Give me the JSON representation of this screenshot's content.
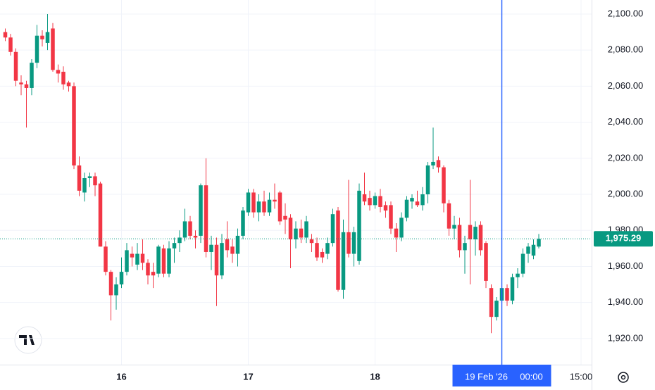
{
  "chart_data": {
    "type": "candlestick",
    "x": [
      -22,
      -21,
      -20,
      -19,
      -18,
      -17,
      -16,
      -15,
      -14,
      -13,
      -12,
      -11,
      -10,
      -9,
      -8,
      -7,
      -6,
      -5,
      -4,
      -3,
      -2,
      -1,
      0,
      1,
      2,
      3,
      4,
      5,
      6,
      7,
      8,
      9,
      10,
      11,
      12,
      13,
      14,
      15,
      16,
      17,
      18,
      19,
      20,
      21,
      22,
      23,
      24,
      25,
      26,
      27,
      28,
      29,
      30,
      31,
      32,
      33,
      34,
      35,
      36,
      37,
      38,
      39,
      40,
      41,
      42,
      43,
      44,
      45,
      46,
      47,
      48,
      49,
      50,
      51,
      52,
      53,
      54,
      55,
      56,
      57,
      58,
      59,
      60,
      61,
      62,
      63,
      64,
      65,
      66,
      67,
      68,
      69,
      70,
      71,
      72,
      73,
      74,
      75,
      76,
      77,
      78,
      79
    ],
    "open": [
      2090,
      2087,
      2079,
      2062,
      2061,
      2059,
      2073,
      2088,
      2084,
      2092,
      2069,
      2068,
      2062,
      2060,
      2016,
      2001,
      2009,
      2010,
      2006,
      1971,
      1957,
      1944,
      1950,
      1957,
      1967,
      1961,
      1967,
      1962,
      1957,
      1956,
      1970,
      1956,
      1970,
      1973,
      1976,
      1985,
      1977,
      1977,
      2005,
      1968,
      1972,
      1955,
      1975,
      1971,
      1967,
      1977,
      1990,
      2001,
      1990,
      1996,
      1990,
      1997,
      2001,
      1988,
      1987,
      1975,
      1981,
      1976,
      1975,
      1973,
      1968,
      1967,
      1973,
      1991,
      1947,
      1979,
      1967,
      1963,
      2000,
      1998,
      1994,
      1999,
      1994,
      1994,
      1981,
      1976,
      1987,
      1996,
      1996,
      1994,
      2000,
      2016,
      2019,
      2015,
      1995,
      1981,
      1983,
      1969,
      1983,
      1975,
      1983,
      1973,
      1948,
      1932,
      1941,
      1948,
      1941,
      1954,
      1956,
      1967,
      1966,
      1971
    ],
    "high": [
      2092,
      2089,
      2081,
      2066,
      2063,
      2075,
      2094,
      2091,
      2100,
      2095,
      2072,
      2071,
      2063,
      2062,
      2021,
      2012,
      2012,
      2012,
      2007,
      1974,
      1958,
      1954,
      1965,
      1973,
      1971,
      1973,
      1975,
      1964,
      1962,
      1972,
      1972,
      1974,
      1976,
      1980,
      1992,
      1988,
      1980,
      2006,
      2020,
      1977,
      1976,
      1978,
      1985,
      1975,
      1981,
      1993,
      2003,
      2003,
      2000,
      2002,
      2001,
      2006,
      2002,
      1995,
      1989,
      1985,
      1986,
      1988,
      1978,
      1976,
      1970,
      1976,
      1992,
      1993,
      1986,
      2008,
      1982,
      2006,
      2012,
      2002,
      2001,
      2003,
      1996,
      1996,
      1984,
      1990,
      1999,
      2000,
      2002,
      2004,
      2018,
      2037,
      2021,
      2016,
      1997,
      1988,
      1987,
      1977,
      2008,
      1985,
      1985,
      1974,
      1950,
      1943,
      1956,
      1950,
      1956,
      1959,
      1970,
      1973,
      1975,
      1978
    ],
    "low": [
      2085,
      2077,
      2060,
      2055,
      2037,
      2055,
      2070,
      2082,
      2080,
      2068,
      2062,
      2058,
      2057,
      2014,
      1999,
      1996,
      2004,
      1999,
      1971,
      1955,
      1930,
      1936,
      1948,
      1955,
      1960,
      1958,
      1958,
      1950,
      1948,
      1954,
      1954,
      1954,
      1962,
      1968,
      1974,
      1975,
      1970,
      1973,
      1965,
      1958,
      1938,
      1953,
      1965,
      1962,
      1960,
      1975,
      1988,
      1987,
      1985,
      1988,
      1988,
      1992,
      1983,
      1978,
      1959,
      1970,
      1973,
      1973,
      1968,
      1963,
      1962,
      1964,
      1971,
      1946,
      1942,
      1965,
      1960,
      1961,
      1994,
      1991,
      1992,
      1990,
      1987,
      1978,
      1968,
      1974,
      1985,
      1992,
      1993,
      1991,
      1995,
      2014,
      2012,
      1990,
      1977,
      1975,
      1965,
      1956,
      1950,
      1966,
      1966,
      1948,
      1923,
      1930,
      1938,
      1938,
      1939,
      1948,
      1954,
      1962,
      1964,
      1970
    ],
    "close": [
      2087,
      2079,
      2063,
      2061,
      2059,
      2073,
      2088,
      2086,
      2090,
      2069,
      2067,
      2061,
      2060,
      2016,
      2002,
      2009,
      2010,
      2005,
      1971,
      1957,
      1944,
      1950,
      1957,
      1969,
      1965,
      1967,
      1962,
      1955,
      1955,
      1971,
      1956,
      1970,
      1973,
      1976,
      1985,
      1977,
      1976,
      2005,
      1968,
      1972,
      1955,
      1973,
      1969,
      1967,
      1977,
      1991,
      2001,
      1990,
      1996,
      1990,
      1997,
      1996,
      1985,
      1986,
      1975,
      1981,
      1976,
      1985,
      1973,
      1965,
      1965,
      1973,
      1989,
      1947,
      1979,
      1967,
      1979,
      2002,
      1996,
      1994,
      1999,
      1993,
      1991,
      1981,
      1976,
      1987,
      1997,
      1998,
      1994,
      2000,
      2016,
      2018,
      2015,
      1995,
      1981,
      1983,
      1969,
      1973,
      1975,
      1982,
      1969,
      1952,
      1932,
      1941,
      1948,
      1941,
      1954,
      1956,
      1967,
      1971,
      1972,
      1975.29
    ],
    "up_color": "#089981",
    "down_color": "#f23645",
    "xlim": [
      -23,
      89
    ],
    "xticks": [
      {
        "value": 0,
        "label": "16"
      },
      {
        "value": 24,
        "label": "17"
      },
      {
        "value": 48,
        "label": "18"
      },
      {
        "value": 87,
        "label": "15:00"
      }
    ],
    "ylim": [
      1905.5,
      2107.8
    ],
    "yticks": [
      {
        "value": 1920,
        "label": "1,920.00"
      },
      {
        "value": 1940,
        "label": "1,940.00"
      },
      {
        "value": 1960,
        "label": "1,960.00"
      },
      {
        "value": 1980,
        "label": "1,980.00"
      },
      {
        "value": 2000,
        "label": "2,000.00"
      },
      {
        "value": 2020,
        "label": "2,020.00"
      },
      {
        "value": 2040,
        "label": "2,040.00"
      },
      {
        "value": 2060,
        "label": "2,060.00"
      },
      {
        "value": 2080,
        "label": "2,080.00"
      },
      {
        "value": 2100,
        "label": "2,100.00"
      }
    ],
    "grid": true,
    "last_price": {
      "value": 1975.29,
      "label": "1,975.29"
    },
    "crosshair": {
      "x": 72,
      "date_label": "19 Feb '26",
      "time_label": "00:00",
      "color": "#2962ff"
    }
  }
}
